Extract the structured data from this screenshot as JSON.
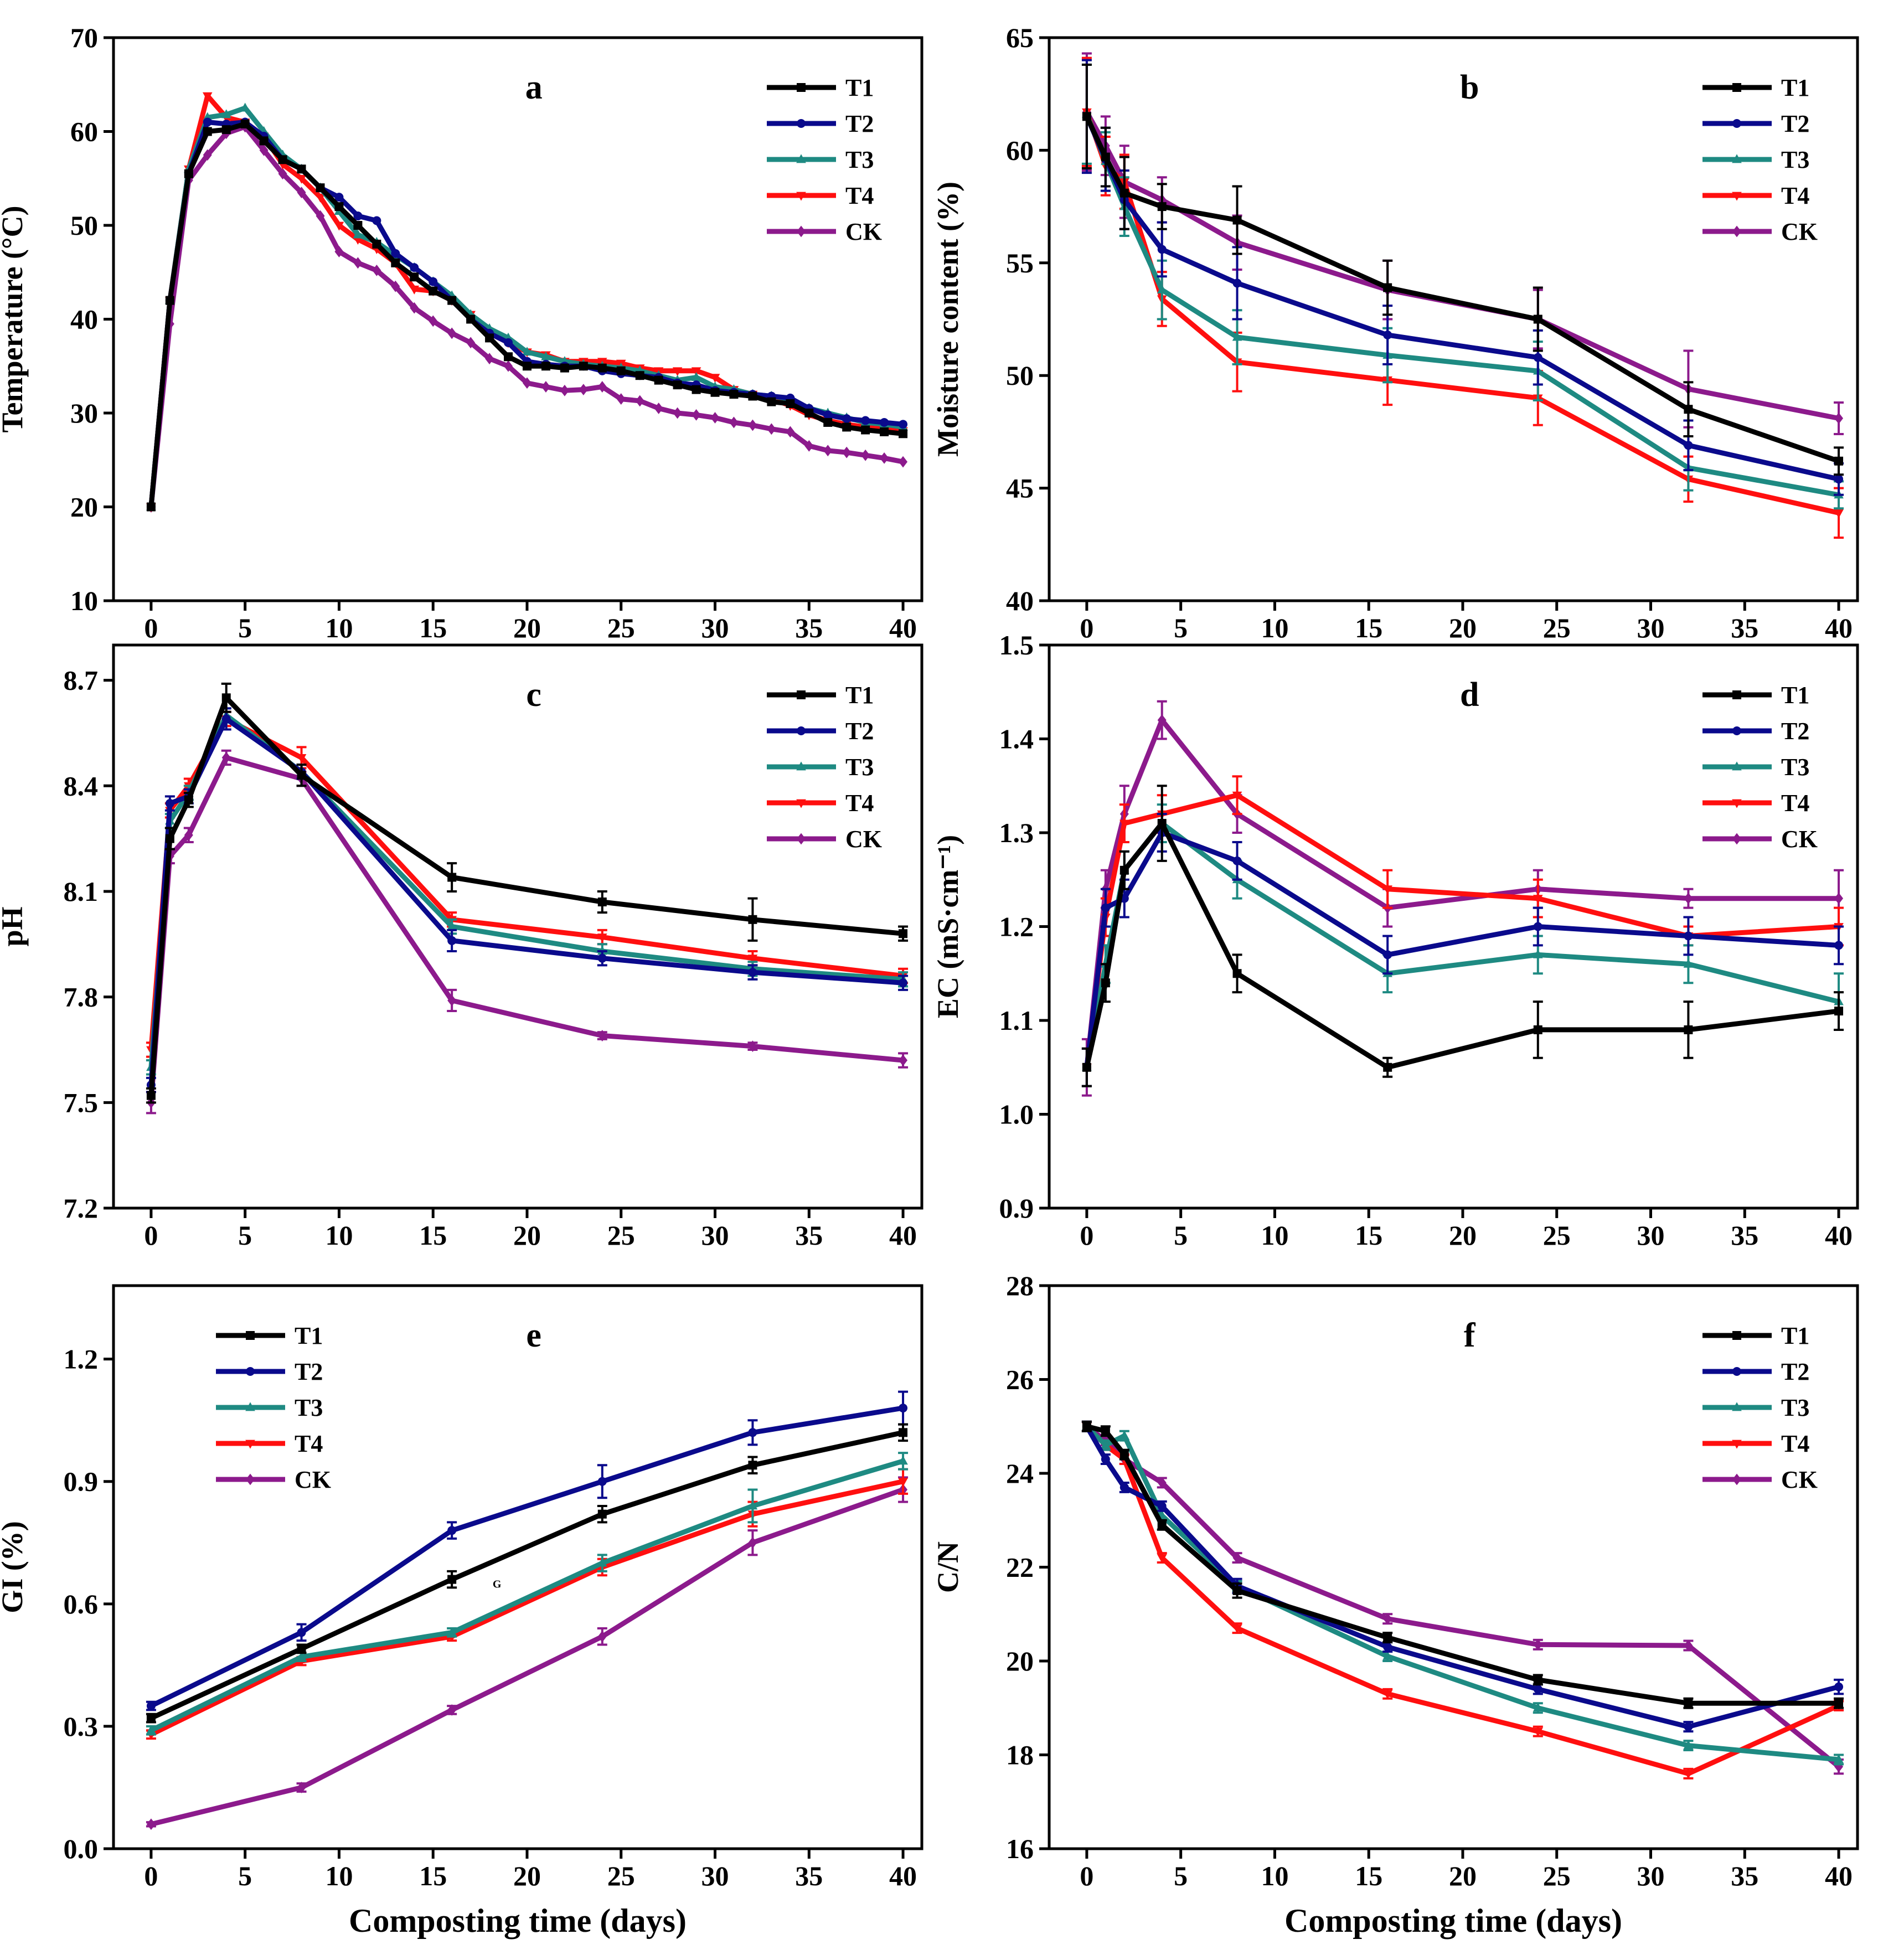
{
  "colors": {
    "T1": "#000000",
    "T2": "#0a0a8c",
    "T3": "#1e8a82",
    "T4": "#ff0f0f",
    "CK": "#8c1a8c"
  },
  "markers": {
    "T1": "square",
    "T2": "circle",
    "T3": "triangle",
    "T4": "triangle-down",
    "CK": "diamond"
  },
  "xlabel": "Composting time  (days)",
  "chart_data": [
    {
      "type": "line",
      "letter": "a",
      "ylabel": "Temperature (°C)",
      "xlim": [
        -2,
        41
      ],
      "ylim": [
        10,
        70
      ],
      "xticks": [
        0,
        5,
        10,
        15,
        20,
        25,
        30,
        35,
        40
      ],
      "yticks": [
        10,
        20,
        30,
        40,
        50,
        60,
        70
      ],
      "legend": "top-right",
      "x": [
        0,
        1,
        2,
        3,
        4,
        5,
        6,
        7,
        8,
        9,
        10,
        11,
        12,
        13,
        14,
        15,
        16,
        17,
        18,
        19,
        20,
        21,
        22,
        23,
        24,
        25,
        26,
        27,
        28,
        29,
        30,
        31,
        32,
        33,
        34,
        35,
        36,
        37,
        38,
        39,
        40
      ],
      "series": [
        {
          "name": "T1",
          "values": [
            20,
            42,
            55.5,
            60,
            60.2,
            60.8,
            59,
            57,
            56,
            54,
            52,
            50,
            48,
            46,
            44.5,
            43,
            42,
            40,
            38,
            36,
            35,
            35,
            34.8,
            35,
            34.8,
            34.5,
            34,
            33.5,
            33,
            32.5,
            32.2,
            32,
            31.8,
            31.2,
            31,
            30,
            29,
            28.5,
            28.2,
            28,
            27.8
          ]
        },
        {
          "name": "T2",
          "values": [
            20,
            42,
            55.5,
            61,
            60.8,
            61,
            59.5,
            57,
            56,
            54,
            53,
            51,
            50.5,
            47,
            45.5,
            44,
            42,
            40,
            38.5,
            37.5,
            35.5,
            35.2,
            35,
            35,
            34.5,
            34.2,
            34,
            33.8,
            33.2,
            33,
            32.4,
            32.2,
            32,
            31.8,
            31.6,
            30.5,
            29.8,
            29.4,
            29.2,
            29,
            28.8
          ]
        },
        {
          "name": "T3",
          "values": [
            20,
            42,
            56,
            61.5,
            61.8,
            62.5,
            60,
            57.5,
            56,
            54,
            51.5,
            49,
            48.2,
            46.8,
            45.5,
            44,
            42.5,
            40.5,
            39,
            38,
            36.5,
            36,
            35.5,
            35.2,
            35,
            34.8,
            34.5,
            34,
            33.5,
            33.8,
            32.8,
            32.5,
            32,
            31.8,
            31.5,
            30.5,
            30,
            29.5,
            29,
            28.8,
            28.5
          ]
        },
        {
          "name": "T4",
          "values": [
            20,
            42,
            56,
            63.8,
            61.5,
            61,
            59.5,
            56.5,
            55,
            53,
            50,
            48.5,
            47.5,
            46,
            43.2,
            43,
            42,
            40.5,
            38.5,
            37.5,
            36.5,
            36.2,
            35.5,
            35.5,
            35.5,
            35.3,
            34.8,
            34.5,
            34.5,
            34.5,
            33.8,
            32.5,
            32,
            31.5,
            30.8,
            29.8,
            29.2,
            28.8,
            28.5,
            28.3,
            28.1
          ]
        },
        {
          "name": "CK",
          "values": [
            20,
            39.5,
            54.8,
            57.5,
            59.8,
            60.5,
            58,
            55.5,
            53.5,
            51,
            47.2,
            46,
            45.2,
            43.5,
            41.2,
            39.8,
            38.5,
            37.5,
            35.8,
            35,
            33.2,
            32.8,
            32.4,
            32.5,
            32.8,
            31.5,
            31.3,
            30.5,
            30,
            29.8,
            29.5,
            29,
            28.7,
            28.3,
            28,
            26.5,
            26,
            25.8,
            25.5,
            25.2,
            24.8
          ]
        }
      ]
    },
    {
      "type": "line",
      "letter": "b",
      "ylabel": "Moisture content (%)",
      "xlim": [
        -2,
        41
      ],
      "ylim": [
        40,
        65
      ],
      "xticks": [
        0,
        5,
        10,
        15,
        20,
        25,
        30,
        35,
        40
      ],
      "yticks": [
        40,
        45,
        50,
        55,
        60,
        65
      ],
      "legend": "top-right",
      "x": [
        0,
        1,
        2,
        4,
        8,
        16,
        24,
        32,
        40
      ],
      "series": [
        {
          "name": "T1",
          "values": [
            61.5,
            59.7,
            58.1,
            57.5,
            56.9,
            53.9,
            52.5,
            48.5,
            46.2
          ],
          "err": [
            2.3,
            1.3,
            1.6,
            1.0,
            1.5,
            1.2,
            1.4,
            1.2,
            0.6
          ]
        },
        {
          "name": "T2",
          "values": [
            61.5,
            59.6,
            57.8,
            55.6,
            54.1,
            51.8,
            50.8,
            46.9,
            45.4
          ],
          "err": [
            2.5,
            1.4,
            1.3,
            1.2,
            1.6,
            1.3,
            1.2,
            1.1,
            0.7
          ]
        },
        {
          "name": "T3",
          "values": [
            61.6,
            59.5,
            57.5,
            53.8,
            51.7,
            50.9,
            50.2,
            45.9,
            44.7
          ],
          "err": [
            2.2,
            1.3,
            1.3,
            1.3,
            1.2,
            1.2,
            1.3,
            1.0,
            0.6
          ]
        },
        {
          "name": "T4",
          "values": [
            61.7,
            59.3,
            58.6,
            53.4,
            50.6,
            49.8,
            49.0,
            45.4,
            43.9
          ],
          "err": [
            2.4,
            1.3,
            1.2,
            1.2,
            1.3,
            1.1,
            1.2,
            1.0,
            1.1
          ]
        },
        {
          "name": "CK",
          "values": [
            61.7,
            60.2,
            58.6,
            57.8,
            55.9,
            53.8,
            52.5,
            49.4,
            48.1
          ],
          "err": [
            2.6,
            1.3,
            1.6,
            1.0,
            1.2,
            1.3,
            1.3,
            1.7,
            0.7
          ]
        }
      ]
    },
    {
      "type": "line",
      "letter": "c",
      "ylabel": "pH",
      "xlim": [
        -2,
        41
      ],
      "ylim": [
        7.2,
        8.8
      ],
      "xticks": [
        0,
        5,
        10,
        15,
        20,
        25,
        30,
        35,
        40
      ],
      "yticks": [
        7.2,
        7.5,
        7.8,
        8.1,
        8.4,
        8.7
      ],
      "ytick_labels": [
        "7.2",
        "7.5",
        "7.8",
        "8.1",
        "8.4",
        "8.7"
      ],
      "legend": "top-right",
      "x": [
        0,
        1,
        2,
        4,
        8,
        16,
        24,
        32,
        40
      ],
      "series": [
        {
          "name": "T1",
          "values": [
            7.52,
            8.25,
            8.36,
            8.65,
            8.43,
            8.14,
            8.07,
            8.02,
            7.98
          ],
          "err": [
            0.02,
            0.03,
            0.02,
            0.04,
            0.03,
            0.04,
            0.03,
            0.06,
            0.02
          ]
        },
        {
          "name": "T2",
          "values": [
            7.55,
            8.35,
            8.37,
            8.59,
            8.44,
            7.96,
            7.91,
            7.87,
            7.84
          ],
          "err": [
            0.02,
            0.02,
            0.02,
            0.03,
            0.02,
            0.03,
            0.02,
            0.02,
            0.02
          ]
        },
        {
          "name": "T3",
          "values": [
            7.6,
            8.3,
            8.38,
            8.6,
            8.44,
            8.0,
            7.93,
            7.88,
            7.85
          ],
          "err": [
            0.02,
            0.02,
            0.02,
            0.02,
            0.02,
            0.02,
            0.02,
            0.02,
            0.02
          ]
        },
        {
          "name": "T4",
          "values": [
            7.65,
            8.33,
            8.4,
            8.59,
            8.48,
            8.02,
            7.97,
            7.91,
            7.86
          ],
          "err": [
            0.02,
            0.02,
            0.02,
            0.02,
            0.03,
            0.02,
            0.02,
            0.02,
            0.02
          ]
        },
        {
          "name": "CK",
          "values": [
            7.5,
            8.2,
            8.26,
            8.48,
            8.42,
            7.79,
            7.69,
            7.66,
            7.62
          ],
          "err": [
            0.03,
            0.02,
            0.02,
            0.02,
            0.02,
            0.03,
            0.01,
            0.01,
            0.02
          ]
        }
      ]
    },
    {
      "type": "line",
      "letter": "d",
      "ylabel": "EC (mS·cm⁻¹)",
      "xlim": [
        -2,
        41
      ],
      "ylim": [
        0.9,
        1.5
      ],
      "xticks": [
        0,
        5,
        10,
        15,
        20,
        25,
        30,
        35,
        40
      ],
      "yticks": [
        0.9,
        1.0,
        1.1,
        1.2,
        1.3,
        1.4,
        1.5
      ],
      "ytick_labels": [
        "0.9",
        "1.0",
        "1.1",
        "1.2",
        "1.3",
        "1.4",
        "1.5"
      ],
      "legend": "top-right",
      "x": [
        0,
        1,
        2,
        4,
        8,
        16,
        24,
        32,
        40
      ],
      "series": [
        {
          "name": "T1",
          "values": [
            1.05,
            1.14,
            1.26,
            1.31,
            1.15,
            1.05,
            1.09,
            1.09,
            1.11
          ],
          "err": [
            0.02,
            0.02,
            0.02,
            0.04,
            0.02,
            0.01,
            0.03,
            0.03,
            0.02
          ]
        },
        {
          "name": "T2",
          "values": [
            1.05,
            1.22,
            1.23,
            1.3,
            1.27,
            1.17,
            1.2,
            1.19,
            1.18
          ],
          "err": [
            0.02,
            0.02,
            0.02,
            0.02,
            0.02,
            0.02,
            0.02,
            0.02,
            0.02
          ]
        },
        {
          "name": "T3",
          "values": [
            1.05,
            1.16,
            1.26,
            1.31,
            1.25,
            1.15,
            1.17,
            1.16,
            1.12
          ],
          "err": [
            0.02,
            0.02,
            0.02,
            0.02,
            0.02,
            0.02,
            0.02,
            0.02,
            0.03
          ]
        },
        {
          "name": "T4",
          "values": [
            1.05,
            1.21,
            1.31,
            1.32,
            1.34,
            1.24,
            1.23,
            1.19,
            1.2
          ],
          "err": [
            0.02,
            0.02,
            0.02,
            0.02,
            0.02,
            0.02,
            0.02,
            0.01,
            0.02
          ]
        },
        {
          "name": "CK",
          "values": [
            1.05,
            1.24,
            1.32,
            1.42,
            1.32,
            1.22,
            1.24,
            1.23,
            1.23
          ],
          "err": [
            0.03,
            0.02,
            0.03,
            0.02,
            0.02,
            0.02,
            0.02,
            0.01,
            0.03
          ]
        }
      ]
    },
    {
      "type": "line",
      "letter": "e",
      "ylabel": "GI (%)",
      "xlim": [
        -2,
        41
      ],
      "ylim": [
        0,
        1.38
      ],
      "xticks": [
        0,
        5,
        10,
        15,
        20,
        25,
        30,
        35,
        40
      ],
      "yticks": [
        0,
        0.3,
        0.6,
        0.9,
        1.2
      ],
      "ytick_labels": [
        "0.0",
        "0.3",
        "0.6",
        "0.9",
        "1.2"
      ],
      "legend": "top-left",
      "stray_mark": "G",
      "x": [
        0,
        8,
        16,
        24,
        32,
        40
      ],
      "series": [
        {
          "name": "T1",
          "values": [
            0.32,
            0.49,
            0.66,
            0.82,
            0.94,
            1.02
          ],
          "err": [
            0.01,
            0.01,
            0.02,
            0.02,
            0.02,
            0.02
          ]
        },
        {
          "name": "T2",
          "values": [
            0.35,
            0.53,
            0.78,
            0.9,
            1.02,
            1.08
          ],
          "err": [
            0.01,
            0.02,
            0.02,
            0.04,
            0.03,
            0.04
          ]
        },
        {
          "name": "T3",
          "values": [
            0.29,
            0.47,
            0.53,
            0.7,
            0.84,
            0.95
          ],
          "err": [
            0.01,
            0.01,
            0.01,
            0.02,
            0.04,
            0.02
          ]
        },
        {
          "name": "T4",
          "values": [
            0.28,
            0.46,
            0.52,
            0.69,
            0.82,
            0.9
          ],
          "err": [
            0.01,
            0.01,
            0.01,
            0.02,
            0.03,
            0.03
          ]
        },
        {
          "name": "CK",
          "values": [
            0.06,
            0.15,
            0.34,
            0.52,
            0.75,
            0.88
          ],
          "err": [
            0.005,
            0.01,
            0.01,
            0.02,
            0.03,
            0.03
          ]
        }
      ]
    },
    {
      "type": "line",
      "letter": "f",
      "ylabel": "C/N",
      "xlim": [
        -2,
        41
      ],
      "ylim": [
        16,
        28
      ],
      "xticks": [
        0,
        5,
        10,
        15,
        20,
        25,
        30,
        35,
        40
      ],
      "yticks": [
        16,
        18,
        20,
        22,
        24,
        26,
        28
      ],
      "legend": "top-right",
      "x": [
        0,
        1,
        2,
        4,
        8,
        16,
        24,
        32,
        40
      ],
      "series": [
        {
          "name": "T1",
          "values": [
            25.0,
            24.9,
            24.4,
            22.9,
            21.5,
            20.5,
            19.6,
            19.1,
            19.1
          ],
          "err": [
            0.1,
            0.1,
            0.1,
            0.1,
            0.15,
            0.1,
            0.1,
            0.1,
            0.1
          ]
        },
        {
          "name": "T2",
          "values": [
            25.0,
            24.3,
            23.7,
            23.3,
            21.6,
            20.3,
            19.4,
            18.6,
            19.45
          ],
          "err": [
            0.1,
            0.1,
            0.1,
            0.1,
            0.15,
            0.1,
            0.1,
            0.1,
            0.15
          ]
        },
        {
          "name": "T3",
          "values": [
            25.0,
            24.6,
            24.8,
            23.1,
            21.6,
            20.1,
            19.0,
            18.2,
            17.9
          ],
          "err": [
            0.1,
            0.1,
            0.1,
            0.1,
            0.1,
            0.1,
            0.1,
            0.1,
            0.1
          ]
        },
        {
          "name": "T4",
          "values": [
            25.0,
            24.6,
            24.3,
            22.2,
            20.7,
            19.3,
            18.5,
            17.6,
            19.05
          ],
          "err": [
            0.1,
            0.1,
            0.1,
            0.1,
            0.1,
            0.1,
            0.1,
            0.1,
            0.1
          ]
        },
        {
          "name": "CK",
          "values": [
            25.0,
            24.7,
            24.3,
            23.8,
            22.2,
            20.9,
            20.35,
            20.33,
            17.75
          ],
          "err": [
            0.1,
            0.1,
            0.1,
            0.1,
            0.1,
            0.1,
            0.1,
            0.1,
            0.15
          ]
        }
      ]
    }
  ]
}
